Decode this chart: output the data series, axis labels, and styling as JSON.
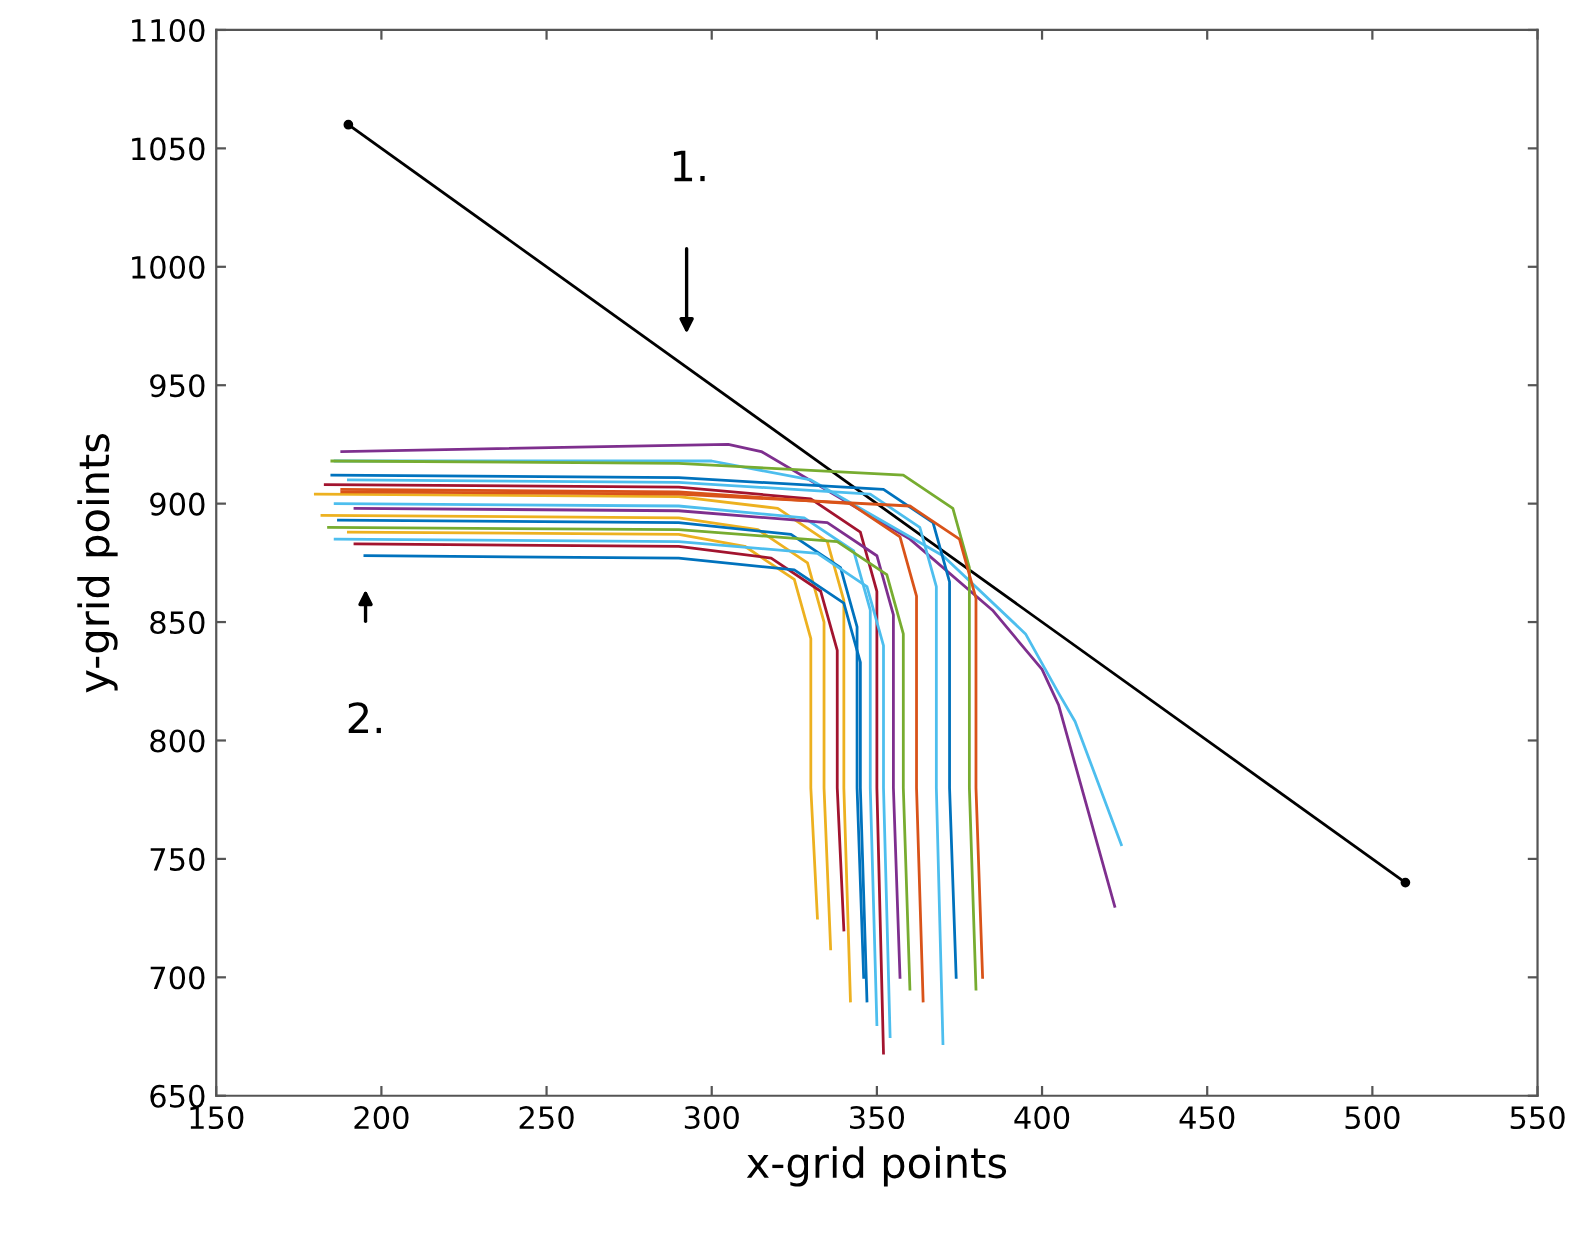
{
  "chart_data": {
    "type": "line",
    "xlabel": "x-grid points",
    "ylabel": "y-grid points",
    "xlim": [
      150,
      550
    ],
    "ylim": [
      650,
      1100
    ],
    "xticks": [
      150,
      200,
      250,
      300,
      350,
      400,
      450,
      500,
      550
    ],
    "yticks": [
      650,
      700,
      750,
      800,
      850,
      900,
      950,
      1000,
      1050,
      1100
    ],
    "grid": false,
    "legend": false,
    "annotations": [
      "1.",
      "2."
    ],
    "series": [
      {
        "color": "#000000",
        "marker": "circle",
        "x": [
          190,
          510
        ],
        "values": [
          1060,
          740
        ]
      },
      {
        "color": "#7e2f8e",
        "x": [
          188,
          305,
          315,
          360,
          385,
          400,
          405,
          422
        ],
        "values": [
          922,
          925,
          922,
          885,
          855,
          830,
          815,
          730
        ]
      },
      {
        "color": "#4dbeee",
        "x": [
          186,
          300,
          330,
          370,
          395,
          405,
          410,
          424
        ],
        "values": [
          918,
          918,
          910,
          878,
          845,
          820,
          808,
          756
        ]
      },
      {
        "color": "#0072bd",
        "x": [
          185,
          290,
          352,
          367,
          372,
          372,
          374
        ],
        "values": [
          912,
          911,
          906,
          892,
          867,
          780,
          700
        ]
      },
      {
        "color": "#4dbeee",
        "x": [
          190,
          290,
          348,
          363,
          368,
          368,
          370
        ],
        "values": [
          910,
          909,
          904,
          890,
          865,
          780,
          672
        ]
      },
      {
        "color": "#a2142f",
        "x": [
          183,
          290,
          330,
          345,
          350,
          350,
          352
        ],
        "values": [
          908,
          907,
          902,
          888,
          863,
          780,
          668
        ]
      },
      {
        "color": "#d95319",
        "x": [
          188,
          290,
          342,
          357,
          362,
          362,
          364
        ],
        "values": [
          906,
          905,
          900,
          886,
          861,
          780,
          690
        ]
      },
      {
        "color": "#edb120",
        "x": [
          180,
          290,
          320,
          335,
          340,
          340,
          342
        ],
        "values": [
          904,
          903,
          898,
          884,
          859,
          780,
          690
        ]
      },
      {
        "color": "#4dbeee",
        "x": [
          186,
          290,
          328,
          343,
          348,
          348,
          350
        ],
        "values": [
          900,
          899,
          894,
          880,
          855,
          780,
          680
        ]
      },
      {
        "color": "#7e2f8e",
        "x": [
          192,
          290,
          335,
          350,
          355,
          355,
          357
        ],
        "values": [
          898,
          897,
          892,
          878,
          853,
          780,
          700
        ]
      },
      {
        "color": "#edb120",
        "x": [
          182,
          290,
          314,
          329,
          334,
          334,
          336
        ],
        "values": [
          895,
          894,
          889,
          875,
          850,
          780,
          712
        ]
      },
      {
        "color": "#0072bd",
        "x": [
          187,
          290,
          324,
          339,
          344,
          344,
          346
        ],
        "values": [
          893,
          892,
          887,
          873,
          848,
          780,
          700
        ]
      },
      {
        "color": "#77ac30",
        "x": [
          184,
          290,
          338,
          353,
          358,
          358,
          360
        ],
        "values": [
          890,
          889,
          884,
          870,
          845,
          780,
          695
        ]
      },
      {
        "color": "#edb120",
        "x": [
          190,
          290,
          310,
          325,
          330,
          330,
          332
        ],
        "values": [
          888,
          887,
          882,
          868,
          843,
          780,
          725
        ]
      },
      {
        "color": "#4dbeee",
        "x": [
          186,
          290,
          332,
          347,
          352,
          352,
          354
        ],
        "values": [
          885,
          884,
          879,
          865,
          840,
          780,
          675
        ]
      },
      {
        "color": "#a2142f",
        "x": [
          192,
          290,
          318,
          333,
          338,
          338,
          340
        ],
        "values": [
          883,
          882,
          877,
          863,
          838,
          780,
          720
        ]
      },
      {
        "color": "#77ac30",
        "x": [
          185,
          290,
          358,
          373,
          378,
          378,
          380
        ],
        "values": [
          918,
          917,
          912,
          898,
          873,
          780,
          695
        ]
      },
      {
        "color": "#0072bd",
        "x": [
          195,
          290,
          325,
          340,
          345,
          345,
          347
        ],
        "values": [
          878,
          877,
          872,
          858,
          833,
          780,
          690
        ]
      },
      {
        "color": "#d95319",
        "x": [
          188,
          290,
          360,
          375,
          380,
          380,
          382
        ],
        "values": [
          905,
          904,
          899,
          885,
          860,
          780,
          700
        ]
      }
    ]
  }
}
